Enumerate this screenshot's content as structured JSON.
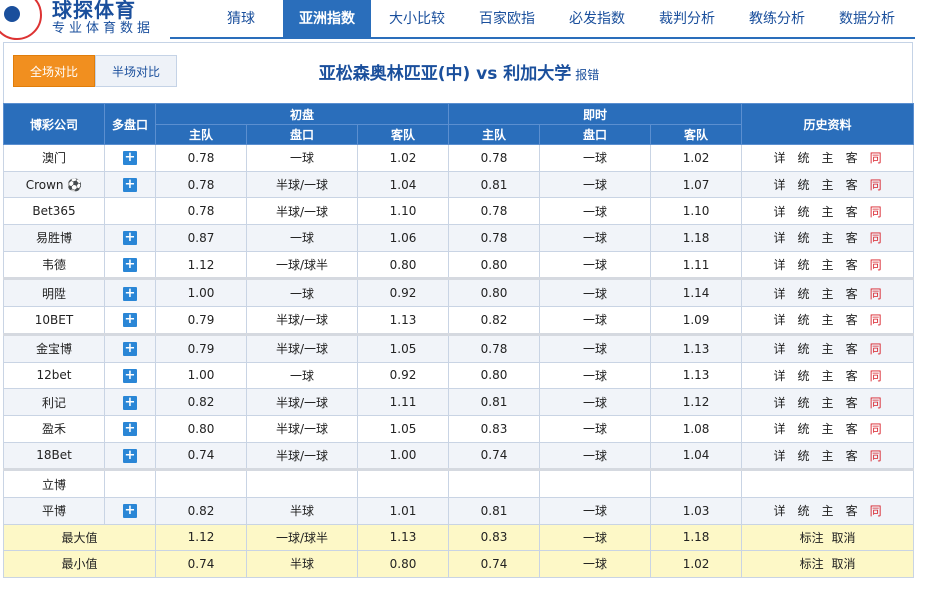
{
  "logo": {
    "title": "球探体育",
    "subtitle": "专业体育数据"
  },
  "nav": [
    {
      "label": "猜球",
      "active": false
    },
    {
      "label": "亚洲指数",
      "active": true
    },
    {
      "label": "大小比较",
      "active": false
    },
    {
      "label": "百家欧指",
      "active": false
    },
    {
      "label": "必发指数",
      "active": false
    },
    {
      "label": "裁判分析",
      "active": false
    },
    {
      "label": "教练分析",
      "active": false
    },
    {
      "label": "数据分析",
      "active": false
    }
  ],
  "tabs": {
    "full": "全场对比",
    "half": "半场对比"
  },
  "match": {
    "title": "亚松森奥林匹亚(中) vs 利加大学",
    "report": "报错"
  },
  "table": {
    "h_company": "博彩公司",
    "h_multi": "多盘口",
    "h_initial": "初盘",
    "h_live": "即时",
    "h_history": "历史资料",
    "h_home": "主队",
    "h_line": "盘口",
    "h_away": "客队"
  },
  "history_labels": [
    "详",
    "统",
    "主",
    "客",
    "同"
  ],
  "rows": [
    {
      "company": "澳门",
      "plus": true,
      "i_home": "0.78",
      "i_line": "一球",
      "i_away": "1.02",
      "l_home": "0.78",
      "l_line": "一球",
      "l_away": "1.02",
      "hist": true
    },
    {
      "company": "Crown ⚽",
      "plus": true,
      "i_home": "0.78",
      "i_line": "半球/一球",
      "i_away": "1.04",
      "l_home": "0.81",
      "l_line": "一球",
      "l_away": "1.07",
      "hist": true
    },
    {
      "company": "Bet365",
      "plus": false,
      "i_home": "0.78",
      "i_line": "半球/一球",
      "i_away": "1.10",
      "l_home": "0.78",
      "l_line": "一球",
      "l_away": "1.10",
      "hist": true
    },
    {
      "company": "易胜博",
      "plus": true,
      "i_home": "0.87",
      "i_line": "一球",
      "i_away": "1.06",
      "l_home": "0.78",
      "l_line": "一球",
      "l_away": "1.18",
      "hist": true
    },
    {
      "company": "韦德",
      "plus": true,
      "i_home": "1.12",
      "i_line": "一球/球半",
      "i_away": "0.80",
      "l_home": "0.80",
      "l_line": "一球",
      "l_away": "1.11",
      "hist": true
    },
    {
      "company": "明陞",
      "plus": true,
      "i_home": "1.00",
      "i_line": "一球",
      "i_away": "0.92",
      "l_home": "0.80",
      "l_line": "一球",
      "l_away": "1.14",
      "hist": true,
      "gap": true
    },
    {
      "company": "10BET",
      "plus": true,
      "i_home": "0.79",
      "i_line": "半球/一球",
      "i_away": "1.13",
      "l_home": "0.82",
      "l_line": "一球",
      "l_away": "1.09",
      "hist": true
    },
    {
      "company": "金宝博",
      "plus": true,
      "i_home": "0.79",
      "i_line": "半球/一球",
      "i_away": "1.05",
      "l_home": "0.78",
      "l_line": "一球",
      "l_away": "1.13",
      "hist": true,
      "gap": true
    },
    {
      "company": "12bet",
      "plus": true,
      "i_home": "1.00",
      "i_line": "一球",
      "i_away": "0.92",
      "l_home": "0.80",
      "l_line": "一球",
      "l_away": "1.13",
      "hist": true
    },
    {
      "company": "利记",
      "plus": true,
      "i_home": "0.82",
      "i_line": "半球/一球",
      "i_away": "1.11",
      "l_home": "0.81",
      "l_line": "一球",
      "l_away": "1.12",
      "hist": true
    },
    {
      "company": "盈禾",
      "plus": true,
      "i_home": "0.80",
      "i_line": "半球/一球",
      "i_away": "1.05",
      "l_home": "0.83",
      "l_line": "一球",
      "l_away": "1.08",
      "hist": true
    },
    {
      "company": "18Bet",
      "plus": true,
      "i_home": "0.74",
      "i_line": "半球/一球",
      "i_away": "1.00",
      "l_home": "0.74",
      "l_line": "一球",
      "l_away": "1.04",
      "hist": true
    },
    {
      "company": "立博",
      "plus": false,
      "i_home": "",
      "i_line": "",
      "i_away": "",
      "l_home": "",
      "l_line": "",
      "l_away": "",
      "hist": false,
      "gap": true
    },
    {
      "company": "平博",
      "plus": true,
      "i_home": "0.82",
      "i_line": "半球",
      "i_away": "1.01",
      "l_home": "0.81",
      "l_line": "一球",
      "l_away": "1.03",
      "hist": true
    }
  ],
  "summary": [
    {
      "label": "最大值",
      "i_home": "1.12",
      "i_line": "一球/球半",
      "i_away": "1.13",
      "l_home": "0.83",
      "l_line": "一球",
      "l_away": "1.18"
    },
    {
      "label": "最小值",
      "i_home": "0.74",
      "i_line": "半球",
      "i_away": "0.80",
      "l_home": "0.74",
      "l_line": "一球",
      "l_away": "1.02"
    }
  ],
  "summary_actions": {
    "mark": "标注",
    "cancel": "取消"
  },
  "colors": {
    "nav_active": "#2a6ebb",
    "header_bg": "#2a6ebb",
    "tab_active": "#f18f1f",
    "summary_bg": "#fdf8c7",
    "same": "#d8202a"
  }
}
